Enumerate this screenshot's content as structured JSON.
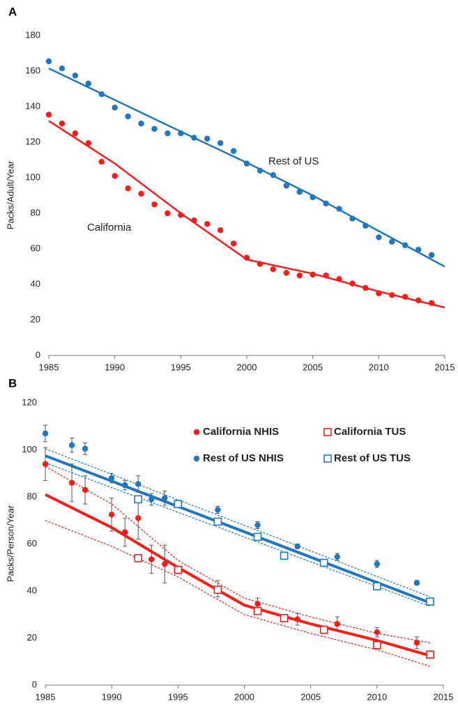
{
  "chart_data": [
    {
      "type": "scatter",
      "label": "A",
      "y_label": "Packs/Adult/Year",
      "xlim": [
        1985,
        2015
      ],
      "xticks": [
        1985,
        1990,
        1995,
        2000,
        2005,
        2010,
        2015
      ],
      "ylim": [
        0,
        180
      ],
      "yticks": [
        0,
        20,
        40,
        60,
        80,
        100,
        120,
        140,
        160,
        180
      ],
      "grid": false,
      "series": [
        {
          "name": "Rest of US",
          "color": "#1f77c4",
          "marker": "circle",
          "x": [
            1985,
            1986,
            1987,
            1988,
            1989,
            1990,
            1991,
            1992,
            1993,
            1994,
            1995,
            1996,
            1997,
            1998,
            1999,
            2000,
            2001,
            2002,
            2003,
            2004,
            2005,
            2006,
            2007,
            2008,
            2009,
            2010,
            2011,
            2012,
            2013,
            2014
          ],
          "values": [
            165.5,
            161.5,
            157.5,
            153,
            147,
            139.5,
            134.5,
            130.5,
            127.5,
            125,
            125,
            122.5,
            122,
            119.5,
            115,
            108,
            104,
            101.5,
            95.5,
            92,
            89,
            85.5,
            82.5,
            77,
            73,
            66.5,
            64,
            62,
            59.5,
            56.5
          ]
        },
        {
          "color": "#1f77c4",
          "marker": "none",
          "line_width": 2.5,
          "x": [
            1985,
            1995,
            2000,
            2005,
            2010,
            2015
          ],
          "values": [
            161.5,
            126,
            108.5,
            90,
            70,
            50
          ]
        },
        {
          "name": "California",
          "color": "#ff1a1a",
          "marker": "circle",
          "x": [
            1985,
            1986,
            1987,
            1988,
            1989,
            1990,
            1991,
            1992,
            1993,
            1994,
            1995,
            1996,
            1997,
            1998,
            1999,
            2000,
            2001,
            2002,
            2003,
            2004,
            2005,
            2006,
            2007,
            2008,
            2009,
            2010,
            2011,
            2012,
            2013,
            2014
          ],
          "values": [
            135.5,
            130.5,
            125,
            119.5,
            109,
            101,
            94,
            91,
            85,
            80,
            79,
            76,
            74,
            70.5,
            63,
            55,
            51.5,
            48.5,
            46.5,
            45,
            45.5,
            45,
            43,
            40.5,
            38,
            35,
            34,
            33,
            31,
            29.5
          ]
        },
        {
          "color": "#ff1a1a",
          "marker": "none",
          "line_width": 2.5,
          "x": [
            1985,
            1990,
            1995,
            2000,
            2005,
            2010,
            2015
          ],
          "values": [
            132,
            108,
            80,
            54,
            46,
            36,
            27
          ]
        }
      ]
    },
    {
      "type": "scatter",
      "label": "B",
      "y_label": "Packs/Person/Year",
      "xlim": [
        1985,
        2015
      ],
      "xticks": [
        1985,
        1990,
        1995,
        2000,
        2005,
        2010,
        2015
      ],
      "ylim": [
        0,
        120
      ],
      "yticks": [
        0,
        20,
        40,
        60,
        80,
        100,
        120
      ],
      "grid": false,
      "series": [
        {
          "name": "California NHIS",
          "color": "#ff1a1a",
          "marker": "circle",
          "x": [
            1985,
            1987,
            1988,
            1990,
            1991,
            1992,
            1993,
            1994,
            1998,
            2001,
            2004,
            2007,
            2010,
            2013
          ],
          "values": [
            94,
            86,
            83,
            72.5,
            65,
            71,
            53.5,
            51.5,
            41,
            34.5,
            28,
            26,
            22.5,
            18
          ],
          "errors": [
            7,
            8,
            6,
            7,
            6,
            9,
            6,
            8,
            3.5,
            2.5,
            2.5,
            3,
            2,
            2.5
          ]
        },
        {
          "name": "California TUS",
          "color": "#ff1a1a",
          "marker": "square",
          "x": [
            1992,
            1995,
            1998,
            2001,
            2003,
            2006,
            2010,
            2014
          ],
          "values": [
            54,
            49,
            40.5,
            31.5,
            28.5,
            23.5,
            17,
            13
          ]
        },
        {
          "name": "Rest of US NHIS",
          "color": "#1f77c4",
          "marker": "circle",
          "x": [
            1985,
            1987,
            1988,
            1990,
            1991,
            1992,
            1993,
            1994,
            1998,
            2001,
            2004,
            2007,
            2010,
            2013
          ],
          "values": [
            107,
            102,
            100.5,
            88,
            85,
            85.5,
            79,
            79.5,
            74.5,
            68,
            59,
            54.5,
            51.5,
            43.5
          ],
          "errors": [
            3.5,
            3,
            2.5,
            2,
            2,
            3.5,
            2.5,
            3,
            1.5,
            1.5,
            1,
            1.5,
            1.5,
            1
          ]
        },
        {
          "name": "Rest of US TUS",
          "color": "#1f77c4",
          "marker": "square",
          "x": [
            1992,
            1995,
            1998,
            2001,
            2003,
            2006,
            2010,
            2014
          ],
          "values": [
            79,
            77,
            69.5,
            63,
            55,
            52,
            42,
            35.5
          ]
        },
        {
          "color": "#ff1a1a",
          "marker": "none",
          "line_width": 4,
          "x": [
            1985,
            1990,
            1995,
            2000,
            2005,
            2010,
            2014
          ],
          "values": [
            81,
            67,
            50,
            34,
            26,
            19,
            12.5
          ]
        },
        {
          "color": "#ff1a1a",
          "marker": "none",
          "line_width": 1.2,
          "dash": true,
          "x": [
            1985,
            1990,
            1995,
            2000,
            2005,
            2010,
            2014
          ],
          "values": [
            93,
            77,
            53,
            37,
            29,
            22,
            18
          ]
        },
        {
          "color": "#ff1a1a",
          "marker": "none",
          "line_width": 1.2,
          "dash": true,
          "x": [
            1985,
            1990,
            1995,
            2000,
            2005,
            2010,
            2014
          ],
          "values": [
            70,
            59,
            46,
            30,
            22,
            15,
            8
          ]
        },
        {
          "color": "#1f77c4",
          "marker": "none",
          "line_width": 4,
          "x": [
            1985,
            2014
          ],
          "values": [
            97.5,
            35
          ]
        },
        {
          "color": "#1f77c4",
          "marker": "none",
          "line_width": 1.2,
          "dash": true,
          "x": [
            1985,
            2014
          ],
          "values": [
            100.5,
            37.5
          ]
        },
        {
          "color": "#1f77c4",
          "marker": "none",
          "line_width": 1.2,
          "dash": true,
          "x": [
            1985,
            2014
          ],
          "values": [
            94.5,
            33.5
          ]
        }
      ]
    }
  ]
}
